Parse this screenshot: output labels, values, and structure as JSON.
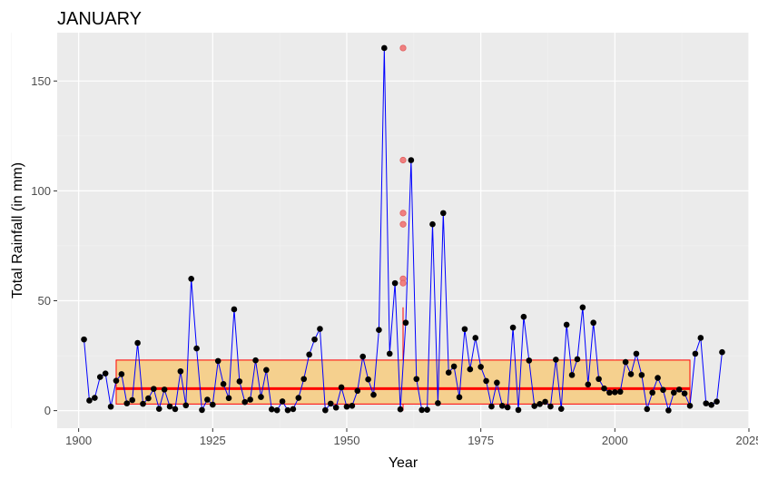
{
  "chart_data": {
    "type": "line",
    "title": "JANUARY",
    "xlabel": "Year",
    "ylabel": "Total Rainfall (in mm)",
    "xlim": [
      1896,
      2025
    ],
    "ylim": [
      -8,
      172
    ],
    "x_ticks": [
      1900,
      1925,
      1950,
      1975,
      2000,
      2025
    ],
    "y_ticks": [
      0,
      50,
      100,
      150
    ],
    "grid": true,
    "colors": {
      "panel": "#ebebeb",
      "grid_major": "#ffffff",
      "grid_minor": "#f2f2f2",
      "line": "#0000ff",
      "point": "#000000",
      "box_fill": "#f5d08e",
      "box_stroke": "#ff0000",
      "median": "#ff0000",
      "outlier": "#f08080"
    },
    "series": [
      {
        "type": "line+points",
        "x": [
          1901,
          1902,
          1903,
          1904,
          1905,
          1906,
          1907,
          1908,
          1909,
          1910,
          1911,
          1912,
          1913,
          1914,
          1915,
          1916,
          1917,
          1918,
          1919,
          1920,
          1921,
          1922,
          1923,
          1924,
          1925,
          1926,
          1927,
          1928,
          1929,
          1930,
          1931,
          1932,
          1933,
          1934,
          1935,
          1936,
          1937,
          1938,
          1939,
          1940,
          1941,
          1942,
          1943,
          1944,
          1945,
          1946,
          1947,
          1948,
          1949,
          1950,
          1951,
          1952,
          1953,
          1954,
          1955,
          1956,
          1957,
          1958,
          1959,
          1960,
          1961,
          1962,
          1963,
          1964,
          1965,
          1966,
          1967,
          1968,
          1969,
          1970,
          1971,
          1972,
          1973,
          1974,
          1975,
          1976,
          1977,
          1978,
          1979,
          1980,
          1981,
          1982,
          1983,
          1984,
          1985,
          1986,
          1987,
          1988,
          1989,
          1990,
          1991,
          1992,
          1993,
          1994,
          1995,
          1996,
          1997,
          1998,
          1999,
          2000,
          2001,
          2002,
          2003,
          2004,
          2005,
          2006,
          2007,
          2008,
          2009,
          2010,
          2011,
          2012,
          2013,
          2014,
          2015,
          2016,
          2017,
          2018,
          2019,
          2020
        ],
        "y": [
          32.4,
          4.6,
          5.8,
          15.3,
          16.9,
          1.8,
          13.6,
          16.6,
          3.3,
          4.8,
          30.8,
          3.1,
          5.6,
          9.9,
          0.8,
          9.6,
          1.9,
          0.7,
          17.9,
          2.4,
          60,
          28.3,
          0.3,
          5,
          2.7,
          22.6,
          12.1,
          5.7,
          46.1,
          13.3,
          3.9,
          5,
          22.9,
          6.2,
          18.5,
          0.6,
          0.2,
          4.2,
          0.2,
          0.7,
          5.8,
          14.4,
          25.5,
          32.4,
          37.2,
          0.2,
          3.2,
          1.4,
          10.6,
          1.8,
          2.2,
          9,
          24.6,
          14.2,
          7.2,
          36.7,
          165,
          25.9,
          58,
          0.6,
          40,
          114,
          14.4,
          0.3,
          0.4,
          84.8,
          3.4,
          89.9,
          17.3,
          20.1,
          6.1,
          37.1,
          18.8,
          33.1,
          19.9,
          13.5,
          1.9,
          12.7,
          2.2,
          1.5,
          37.8,
          0.3,
          42.7,
          22.8,
          2.1,
          3,
          4,
          1.9,
          23.2,
          0.8,
          39.1,
          16.2,
          23.4,
          47,
          11.9,
          40,
          14.4,
          10.1,
          8.2,
          8.4,
          8.6,
          22.1,
          16.6,
          25.9,
          16.2,
          0.7,
          8.2,
          14.9,
          9.4,
          0.1,
          8.2,
          9.6,
          7.8,
          2.2,
          25.9,
          33.1,
          3.3,
          2.6,
          4.1,
          26.6
        ]
      }
    ],
    "boxplot": {
      "x_center": 1960.5,
      "x_span": [
        1907,
        2014
      ],
      "q1": 3,
      "median": 10,
      "q3": 23,
      "whisker_low": 0,
      "whisker_high": 47,
      "outliers": [
        165,
        114,
        89.9,
        84.8,
        60,
        58
      ]
    }
  }
}
